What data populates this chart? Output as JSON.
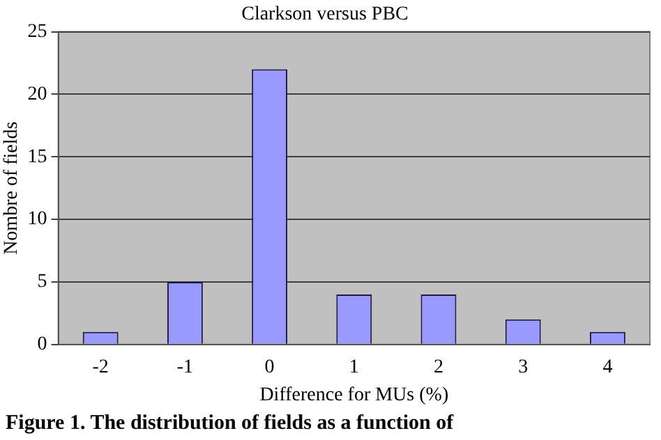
{
  "chart_data": {
    "type": "bar",
    "title": "Clarkson versus PBC",
    "xlabel": "Difference for MUs (%)",
    "ylabel": "Nombre of fields",
    "categories": [
      "-2",
      "-1",
      "0",
      "1",
      "2",
      "3",
      "4"
    ],
    "values": [
      1,
      5,
      22,
      4,
      4,
      2,
      1
    ],
    "color": "#9999ff",
    "ylim": [
      0,
      25
    ],
    "yticks": [
      0,
      5,
      10,
      15,
      20,
      25
    ],
    "grid": "y",
    "legend": false,
    "annotations": [
      "Figure 1. The distribution of fields as a function of"
    ]
  }
}
